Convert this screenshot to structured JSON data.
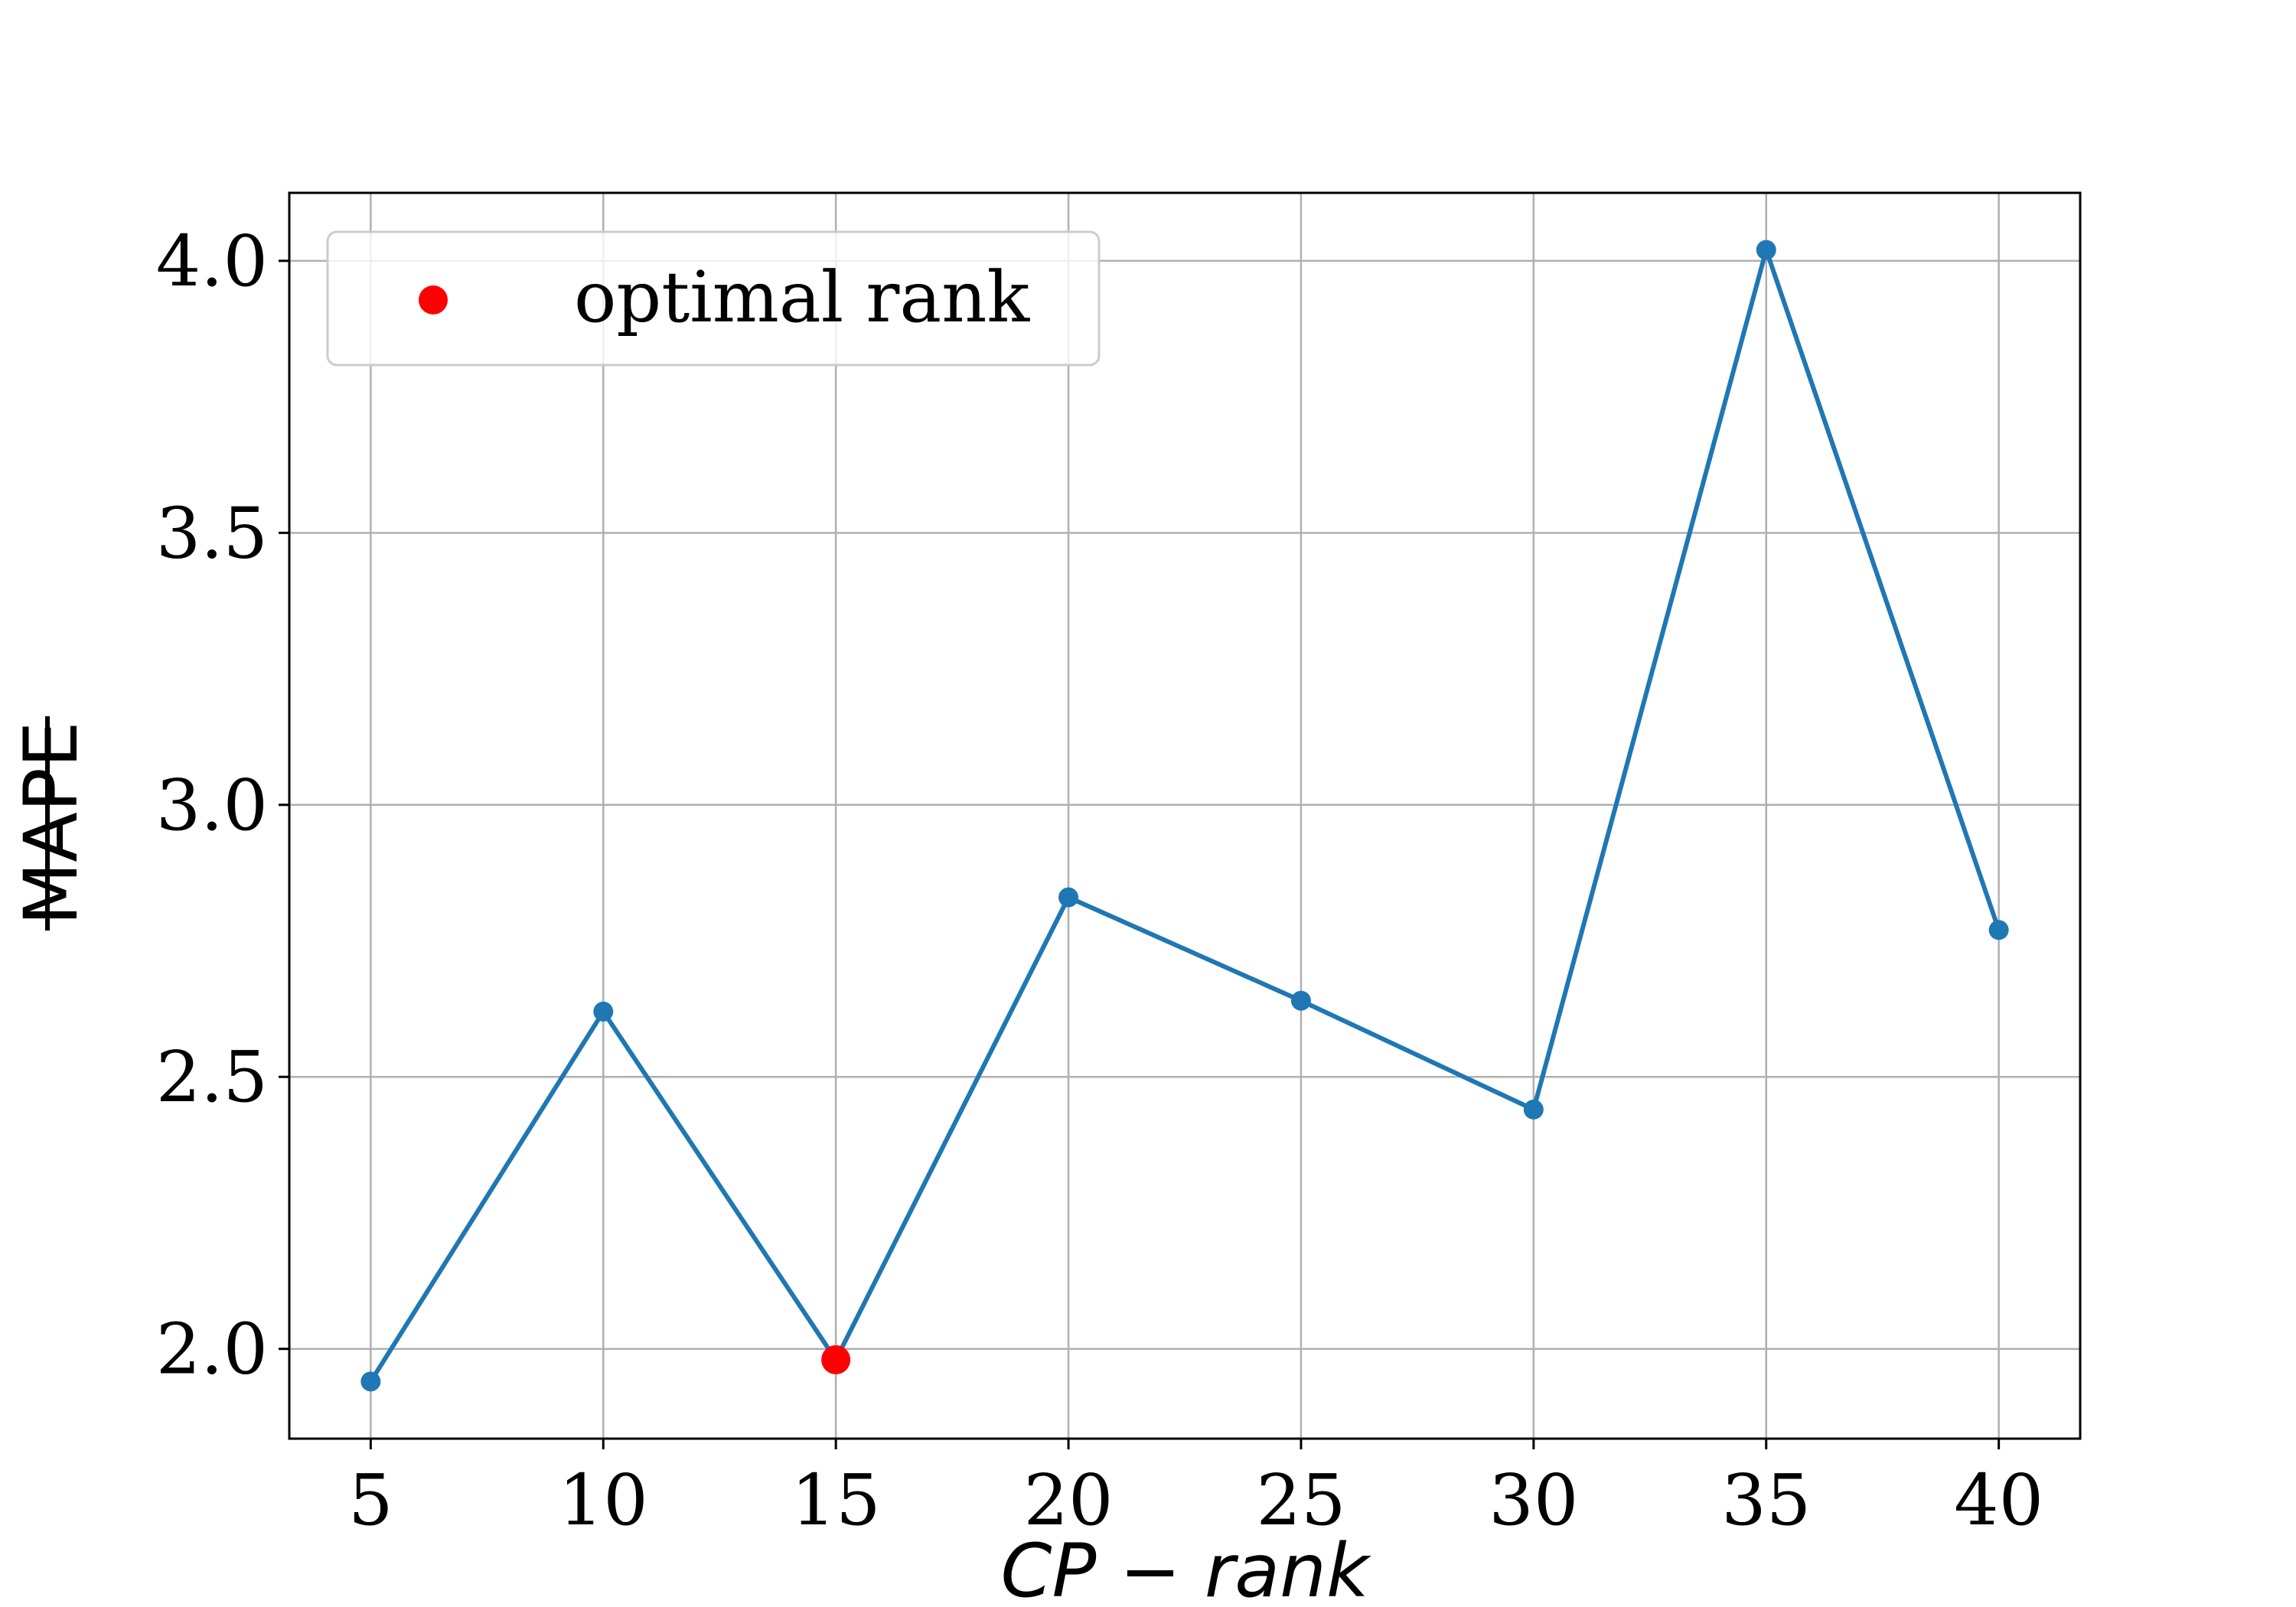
{
  "chart_data": {
    "type": "line",
    "xlabel": "CP − rank",
    "ylabel": "MAPE",
    "x": [
      5,
      10,
      15,
      20,
      25,
      30,
      35,
      40
    ],
    "series": [
      {
        "values": [
          1.94,
          2.62,
          1.98,
          2.83,
          2.64,
          2.44,
          4.02,
          2.77
        ],
        "color": "#1f77b4"
      }
    ],
    "highlight": {
      "name": "optimal rank",
      "x": 15,
      "y": 1.98,
      "color": "#ff0000"
    },
    "xticks": [
      5,
      10,
      15,
      20,
      25,
      30,
      35,
      40
    ],
    "xtick_labels": [
      "5",
      "10",
      "15",
      "20",
      "25",
      "30",
      "35",
      "40"
    ],
    "yticks": [
      2.0,
      2.5,
      3.0,
      3.5,
      4.0
    ],
    "ytick_labels": [
      "2.0",
      "2.5",
      "3.0",
      "3.5",
      "4.0"
    ],
    "xlim": [
      3.25,
      41.75
    ],
    "ylim": [
      1.835,
      4.125
    ],
    "grid": true,
    "legend_position": "top-left",
    "legend": [
      "optimal rank"
    ]
  }
}
